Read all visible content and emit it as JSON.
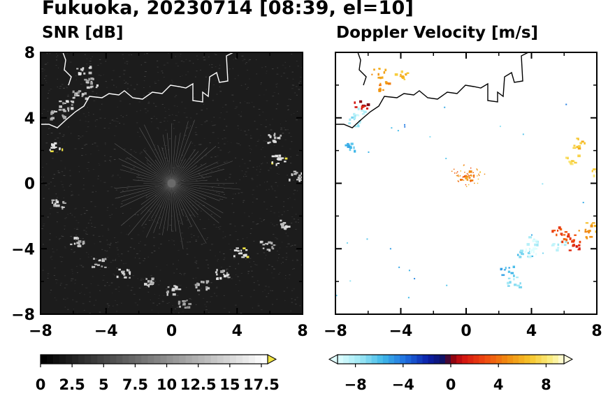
{
  "title": "Fukuoka, 20230714 [08:39, el=10]",
  "chart_data": [
    {
      "type": "heatmap",
      "title": "SNR [dB]",
      "xlim": [
        -8,
        8
      ],
      "ylim": [
        -8,
        8
      ],
      "xticks": [
        "−8",
        "−4",
        "0",
        "4",
        "8"
      ],
      "yticks": [
        "8",
        "4",
        "0",
        "−4",
        "−8"
      ],
      "background": "#1c1c1c",
      "colorbar": {
        "range": [
          0,
          18
        ],
        "ticks": [
          "0",
          "2.5",
          "5",
          "7.5",
          "10",
          "12.5",
          "15",
          "17.5"
        ],
        "extend": "max",
        "extend_color": "#f0e442"
      },
      "echo_clusters": [
        {
          "x": -5.4,
          "y": 7.0,
          "value": 14
        },
        {
          "x": -5.0,
          "y": 6.2,
          "value": 13
        },
        {
          "x": -5.7,
          "y": 5.5,
          "value": 12
        },
        {
          "x": -6.5,
          "y": 4.8,
          "value": 14
        },
        {
          "x": -7.0,
          "y": 4.2,
          "value": 13
        },
        {
          "x": -7.1,
          "y": 2.3,
          "value": 18
        },
        {
          "x": -7.0,
          "y": -1.2,
          "value": 13
        },
        {
          "x": -5.8,
          "y": -3.5,
          "value": 14
        },
        {
          "x": -4.5,
          "y": -4.8,
          "value": 13
        },
        {
          "x": -3.0,
          "y": -5.5,
          "value": 14
        },
        {
          "x": -1.5,
          "y": -6.0,
          "value": 13
        },
        {
          "x": 0.0,
          "y": -6.5,
          "value": 14
        },
        {
          "x": 0.8,
          "y": -7.4,
          "value": 12
        },
        {
          "x": 1.8,
          "y": -6.2,
          "value": 13
        },
        {
          "x": 3.0,
          "y": -5.5,
          "value": 14
        },
        {
          "x": 4.2,
          "y": -4.2,
          "value": 18
        },
        {
          "x": 5.8,
          "y": -3.8,
          "value": 13
        },
        {
          "x": 7.0,
          "y": -2.5,
          "value": 14
        },
        {
          "x": 7.5,
          "y": 0.5,
          "value": 14
        },
        {
          "x": 6.5,
          "y": 1.5,
          "value": 18
        },
        {
          "x": 6.2,
          "y": 2.8,
          "value": 14
        }
      ]
    },
    {
      "type": "heatmap",
      "title": "Doppler Velocity [m/s]",
      "xlim": [
        -8,
        8
      ],
      "ylim": [
        -8,
        8
      ],
      "xticks": [
        "−8",
        "−4",
        "0",
        "4",
        "8"
      ],
      "yticks": [
        "8",
        "4",
        "0",
        "−4",
        "−8"
      ],
      "background": "#ffffff",
      "colorbar": {
        "range": [
          -10,
          10
        ],
        "ticks": [
          "−8",
          "−4",
          "0",
          "4",
          "8"
        ],
        "extend": "both"
      },
      "echo_clusters": [
        {
          "x": -5.4,
          "y": 6.8,
          "value": 6
        },
        {
          "x": -4.0,
          "y": 6.6,
          "value": 7
        },
        {
          "x": -5.2,
          "y": 6.0,
          "value": 5
        },
        {
          "x": -6.6,
          "y": 4.4,
          "value": -9
        },
        {
          "x": -6.8,
          "y": 3.8,
          "value": -8
        },
        {
          "x": -7.3,
          "y": 2.3,
          "value": -6
        },
        {
          "x": -6.5,
          "y": 4.9,
          "value": 1
        },
        {
          "x": 0.0,
          "y": 0.5,
          "value": 5
        },
        {
          "x": 6.8,
          "y": 2.5,
          "value": 7
        },
        {
          "x": 7.8,
          "y": 0.8,
          "value": 8
        },
        {
          "x": 6.5,
          "y": 1.5,
          "value": 8
        },
        {
          "x": 4.0,
          "y": -3.5,
          "value": -9
        },
        {
          "x": 3.5,
          "y": -4.3,
          "value": -7
        },
        {
          "x": 4.0,
          "y": -4.2,
          "value": -10
        },
        {
          "x": 2.5,
          "y": -5.3,
          "value": -6
        },
        {
          "x": 2.9,
          "y": -6.0,
          "value": -8
        },
        {
          "x": 5.6,
          "y": -3.8,
          "value": -9
        },
        {
          "x": 6.2,
          "y": -3.3,
          "value": 3
        },
        {
          "x": 6.5,
          "y": -3.8,
          "value": 2
        },
        {
          "x": 7.2,
          "y": -3.0,
          "value": 5
        },
        {
          "x": 5.6,
          "y": -2.9,
          "value": 3
        },
        {
          "x": 7.7,
          "y": -2.6,
          "value": 6
        }
      ]
    }
  ]
}
